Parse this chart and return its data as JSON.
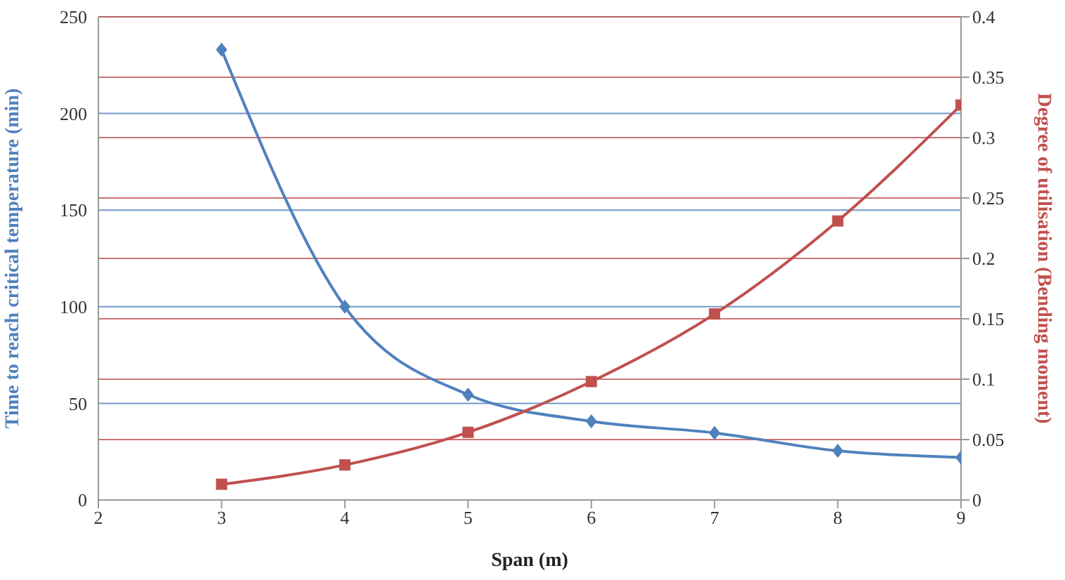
{
  "chart_data": {
    "type": "line",
    "xlabel": "Span (m)",
    "ylabel": "Time to reach critical temperature (min)",
    "y2label": "Degree of utilisation (Bending moment)",
    "x": [
      3,
      4,
      5,
      6,
      7,
      8,
      9
    ],
    "series": [
      {
        "color": "#4f81bd",
        "values": [
          233,
          100,
          54.5,
          40.7,
          34.7,
          25.4,
          22
        ],
        "marker": "diamond"
      },
      {
        "color": "#c0504d",
        "values": [
          0.013,
          0.029,
          0.056,
          0.098,
          0.154,
          0.231,
          0.327
        ],
        "marker": "square",
        "axis": "y2"
      }
    ],
    "xlim": [
      2,
      9
    ],
    "xticks": [
      2,
      3,
      4,
      5,
      6,
      7,
      8,
      9
    ],
    "ylim": [
      0,
      250
    ],
    "yticks": [
      0,
      50,
      100,
      150,
      200,
      250
    ],
    "y2lim": [
      0,
      0.4
    ],
    "y2ticks": [
      0,
      0.05,
      0.1,
      0.15,
      0.2,
      0.25,
      0.3,
      0.35,
      0.4
    ],
    "grid": true,
    "line_style": "solid"
  }
}
